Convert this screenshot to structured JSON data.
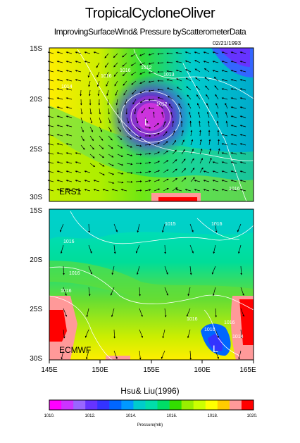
{
  "title": "TropicalCycloneOliver",
  "subtitle": "ImprovingSurfaceWind& Pressure byScatterometerData",
  "date": "02/21/1993",
  "credit": "Hsu& Liu(1996)",
  "latitudes": [
    "15S",
    "20S",
    "25S",
    "30S"
  ],
  "longitudes": [
    "145E",
    "150E",
    "155E",
    "160E",
    "165E"
  ],
  "panels": [
    {
      "label": "ERS1",
      "center_label": "L",
      "contours": [
        "1012",
        "1013",
        "1014",
        "1016",
        "1016",
        "1012",
        "1016"
      ]
    },
    {
      "label": "ECMWF",
      "center_label": "L",
      "contours": [
        "1015",
        "1016",
        "1016",
        "1016",
        "1016",
        "1016",
        "1016",
        "1016",
        "1014"
      ]
    }
  ],
  "colorbar": {
    "label": "Pressure(mb)",
    "ticks": [
      "1010.",
      "1012.",
      "1014.",
      "1016.",
      "1018.",
      "1020."
    ],
    "colors": [
      "#ff00ff",
      "#cc33ff",
      "#9966ff",
      "#6633ff",
      "#3333ff",
      "#0066ff",
      "#0099ff",
      "#00cccc",
      "#00ddaa",
      "#00dd66",
      "#33dd00",
      "#99ee00",
      "#ccff00",
      "#ffff00",
      "#ffcc00",
      "#ff9999",
      "#ff0000"
    ]
  }
}
